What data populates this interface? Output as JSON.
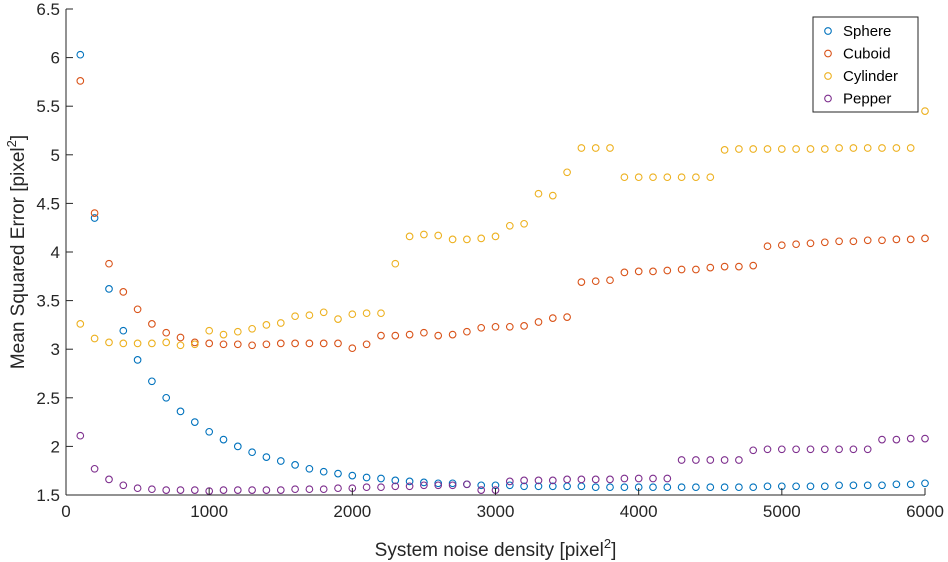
{
  "chart_data": {
    "type": "scatter",
    "title": "",
    "xlabel": "System noise density [pixel",
    "xlabel_sup": "2",
    "xlabel_suffix": "]",
    "ylabel": "Mean Squared Error [pixel",
    "ylabel_sup": "2",
    "ylabel_suffix": "]",
    "xlim": [
      0,
      6000
    ],
    "ylim": [
      1.5,
      6.5
    ],
    "xticks": [
      0,
      1000,
      2000,
      3000,
      4000,
      5000,
      6000
    ],
    "xtick_labels": [
      "0",
      "1000",
      "2000",
      "3000",
      "4000",
      "5000",
      "6000"
    ],
    "yticks": [
      1.5,
      2,
      2.5,
      3,
      3.5,
      4,
      4.5,
      5,
      5.5,
      6,
      6.5
    ],
    "ytick_labels": [
      "1.5",
      "2",
      "2.5",
      "3",
      "3.5",
      "4",
      "4.5",
      "5",
      "5.5",
      "6",
      "6.5"
    ],
    "grid": false,
    "legend_position": "top-right",
    "x": [
      100,
      200,
      300,
      400,
      500,
      600,
      700,
      800,
      900,
      1000,
      1100,
      1200,
      1300,
      1400,
      1500,
      1600,
      1700,
      1800,
      1900,
      2000,
      2100,
      2200,
      2300,
      2400,
      2500,
      2600,
      2700,
      2800,
      2900,
      3000,
      3100,
      3200,
      3300,
      3400,
      3500,
      3600,
      3700,
      3800,
      3900,
      4000,
      4100,
      4200,
      4300,
      4400,
      4500,
      4600,
      4700,
      4800,
      4900,
      5000,
      5100,
      5200,
      5300,
      5400,
      5500,
      5600,
      5700,
      5800,
      5900,
      6000
    ],
    "series": [
      {
        "name": "Sphere",
        "color": "#0072BD",
        "values": [
          6.03,
          4.35,
          3.62,
          3.19,
          2.89,
          2.67,
          2.5,
          2.36,
          2.25,
          2.15,
          2.07,
          2.0,
          1.94,
          1.89,
          1.85,
          1.81,
          1.77,
          1.74,
          1.72,
          1.7,
          1.68,
          1.67,
          1.65,
          1.64,
          1.63,
          1.62,
          1.62,
          1.61,
          1.6,
          1.6,
          1.6,
          1.59,
          1.59,
          1.59,
          1.59,
          1.59,
          1.58,
          1.58,
          1.58,
          1.58,
          1.58,
          1.58,
          1.58,
          1.58,
          1.58,
          1.58,
          1.58,
          1.58,
          1.59,
          1.59,
          1.59,
          1.59,
          1.59,
          1.6,
          1.6,
          1.6,
          1.6,
          1.61,
          1.61,
          1.62
        ]
      },
      {
        "name": "Cuboid",
        "color": "#D95319",
        "values": [
          5.76,
          4.4,
          3.88,
          3.59,
          3.41,
          3.26,
          3.17,
          3.12,
          3.07,
          3.06,
          3.05,
          3.05,
          3.04,
          3.05,
          3.06,
          3.06,
          3.06,
          3.06,
          3.06,
          3.01,
          3.05,
          3.14,
          3.14,
          3.15,
          3.17,
          3.14,
          3.15,
          3.18,
          3.22,
          3.23,
          3.23,
          3.24,
          3.28,
          3.32,
          3.33,
          3.69,
          3.7,
          3.71,
          3.79,
          3.8,
          3.8,
          3.81,
          3.82,
          3.82,
          3.84,
          3.85,
          3.85,
          3.86,
          4.06,
          4.07,
          4.08,
          4.09,
          4.1,
          4.11,
          4.11,
          4.12,
          4.12,
          4.13,
          4.13,
          4.14
        ]
      },
      {
        "name": "Cylinder",
        "color": "#EDB120",
        "values": [
          3.26,
          3.11,
          3.07,
          3.06,
          3.06,
          3.06,
          3.07,
          3.04,
          3.05,
          3.19,
          3.15,
          3.18,
          3.21,
          3.25,
          3.27,
          3.34,
          3.35,
          3.38,
          3.31,
          3.36,
          3.37,
          3.37,
          3.88,
          4.16,
          4.18,
          4.17,
          4.13,
          4.13,
          4.14,
          4.16,
          4.27,
          4.29,
          4.6,
          4.58,
          4.82,
          5.07,
          5.07,
          5.07,
          4.77,
          4.77,
          4.77,
          4.77,
          4.77,
          4.77,
          4.77,
          5.05,
          5.06,
          5.06,
          5.06,
          5.06,
          5.06,
          5.06,
          5.06,
          5.07,
          5.07,
          5.07,
          5.07,
          5.07,
          5.07,
          5.45
        ]
      },
      {
        "name": "Pepper",
        "color": "#7E2F8E",
        "values": [
          2.11,
          1.77,
          1.66,
          1.6,
          1.57,
          1.56,
          1.55,
          1.55,
          1.55,
          1.54,
          1.55,
          1.55,
          1.55,
          1.55,
          1.55,
          1.56,
          1.56,
          1.56,
          1.57,
          1.57,
          1.58,
          1.58,
          1.59,
          1.59,
          1.6,
          1.6,
          1.6,
          1.61,
          1.55,
          1.55,
          1.64,
          1.65,
          1.65,
          1.65,
          1.66,
          1.66,
          1.66,
          1.66,
          1.67,
          1.67,
          1.67,
          1.67,
          1.86,
          1.86,
          1.86,
          1.86,
          1.86,
          1.96,
          1.97,
          1.97,
          1.97,
          1.97,
          1.97,
          1.97,
          1.97,
          1.97,
          2.07,
          2.07,
          2.08,
          2.08
        ]
      }
    ]
  }
}
